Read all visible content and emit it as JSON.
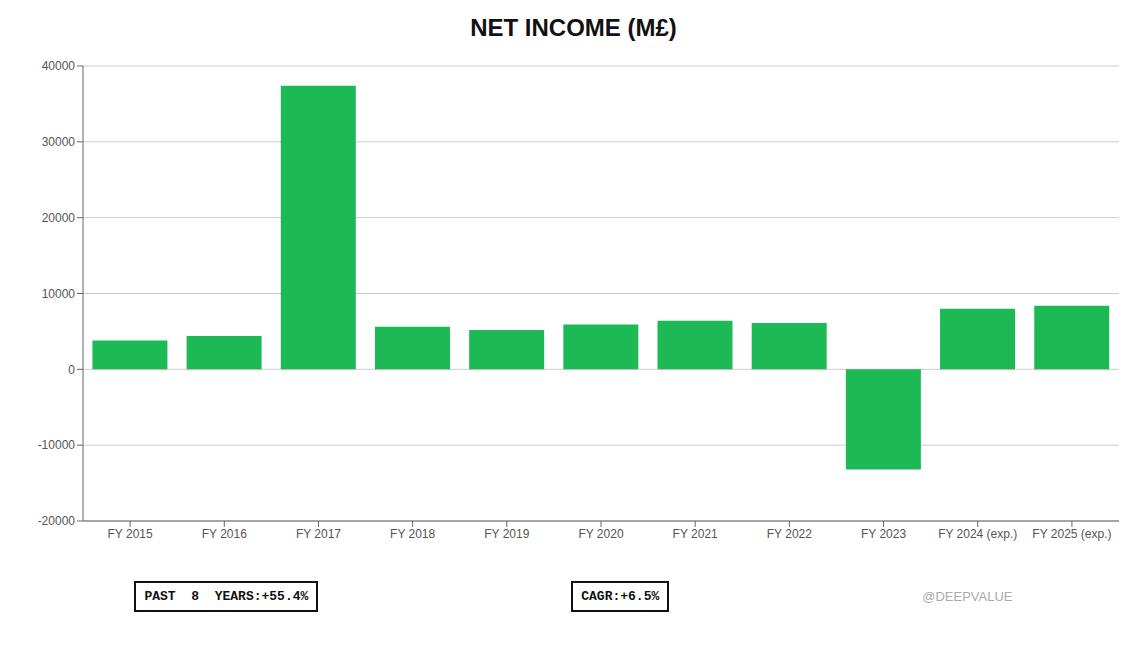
{
  "chart_data": {
    "type": "bar",
    "title": "NET INCOME (M£)",
    "categories": [
      "FY 2015",
      "FY 2016",
      "FY 2017",
      "FY 2018",
      "FY 2019",
      "FY 2020",
      "FY 2021",
      "FY 2022",
      "FY 2023",
      "FY 2024 (exp.)",
      "FY 2025 (exp.)"
    ],
    "values": [
      3800,
      4400,
      37400,
      5600,
      5200,
      5900,
      6400,
      6100,
      -13200,
      8000,
      8400
    ],
    "color": "#1DB954",
    "ylim": [
      -20000,
      40000
    ],
    "yticks": [
      -20000,
      -10000,
      0,
      10000,
      20000,
      30000,
      40000
    ],
    "grid": true,
    "annotations": [
      "PAST  8  YEARS:+55.4%",
      "CAGR:+6.5%",
      "@DEEPVALUE"
    ]
  }
}
